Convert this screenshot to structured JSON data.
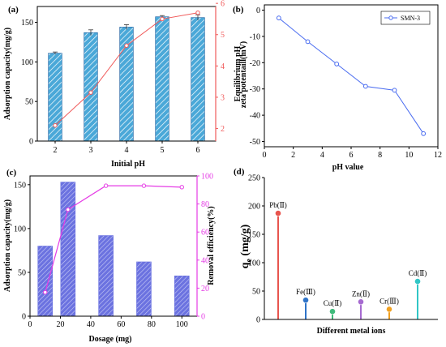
{
  "colors": {
    "bar_blue": "#4aa8d8",
    "bar_blue_edge": "#1f5f9f",
    "line_red": "#f05a5a",
    "zeta_blue": "#4a6cf0",
    "bar_purple": "#6b72e0",
    "line_magenta": "#e53be5",
    "axis_black": "#000000"
  },
  "chart_data": [
    {
      "panel": "(a)",
      "type": "bar",
      "title": "",
      "xlabel": "Initial pH",
      "ylabel": "Adsorption capacity(mg/g)",
      "y2label": "Equilibrium  pH",
      "categories": [
        "2",
        "3",
        "4",
        "5",
        "6"
      ],
      "x_values": [
        2,
        3,
        4,
        5,
        6
      ],
      "xlim": [
        1.5,
        6.5
      ],
      "ylim": [
        0,
        170
      ],
      "y2lim": [
        1.6,
        5.9
      ],
      "yticks": [
        0,
        50,
        100,
        150
      ],
      "y2ticks": [
        2,
        3,
        4,
        5,
        6
      ],
      "series": [
        {
          "kind": "bar",
          "values": [
            111,
            137,
            144,
            157,
            156
          ],
          "errors": [
            1.5,
            3.5,
            3,
            1.5,
            3.5
          ]
        },
        {
          "kind": "line",
          "axis": "right",
          "values": [
            2.1,
            3.15,
            4.65,
            5.5,
            5.7
          ]
        }
      ]
    },
    {
      "panel": "(b)",
      "type": "line",
      "title": "",
      "xlabel": "pH value",
      "ylabel": "zeta potentaill(mV)",
      "xlim": [
        0,
        12
      ],
      "ylim": [
        -52,
        2
      ],
      "xticks": [
        0,
        2,
        4,
        6,
        8,
        10,
        12
      ],
      "yticks": [
        0,
        -10,
        -20,
        -30,
        -40,
        -50
      ],
      "legend_position": "top-right",
      "series": [
        {
          "name": "SMN-3",
          "x": [
            1,
            3,
            5,
            7,
            9,
            11
          ],
          "values": [
            -3,
            -12,
            -20.5,
            -29,
            -30.5,
            -47
          ]
        }
      ]
    },
    {
      "panel": "(c)",
      "type": "bar",
      "title": "",
      "xlabel": "Dosage (mg)",
      "ylabel": "Adsorption capacity(mg/g)",
      "y2label": "Removal efficiency(%)",
      "xlim": [
        0,
        110
      ],
      "ylim": [
        0,
        160
      ],
      "y2lim": [
        0,
        100
      ],
      "xticks": [
        0,
        20,
        40,
        60,
        80,
        100
      ],
      "yticks": [
        0,
        50,
        100,
        150
      ],
      "y2ticks": [
        0,
        20,
        40,
        60,
        80,
        100
      ],
      "series": [
        {
          "kind": "bar",
          "x": [
            10,
            25,
            50,
            75,
            100
          ],
          "values": [
            80,
            153,
            92,
            62,
            46
          ]
        },
        {
          "kind": "line",
          "axis": "right",
          "x": [
            10,
            25,
            50,
            75,
            100
          ],
          "values": [
            17,
            76,
            93,
            93,
            92
          ]
        }
      ]
    },
    {
      "panel": "(d)",
      "type": "bar",
      "title": "",
      "xlabel": "Different metal ions",
      "ylabel": "qe (mg/g)",
      "ylabel_main": "q",
      "ylabel_sub": "e",
      "ylabel_rest": " (mg/g)",
      "ylim": [
        0,
        250
      ],
      "yticks": [
        0,
        50,
        100,
        150,
        200,
        250
      ],
      "categories": [
        "Pb(Ⅱ)",
        "Fe(Ⅲ)",
        "Cu(Ⅱ)",
        "Zn(Ⅱ)",
        "Cr(Ⅲ)",
        "Cd(Ⅱ)"
      ],
      "values": [
        187,
        34,
        14,
        31,
        18,
        67
      ],
      "point_colors": [
        "#e8554e",
        "#2f74c8",
        "#3fba7a",
        "#a66ad0",
        "#f0a020",
        "#31c6c6"
      ]
    }
  ]
}
